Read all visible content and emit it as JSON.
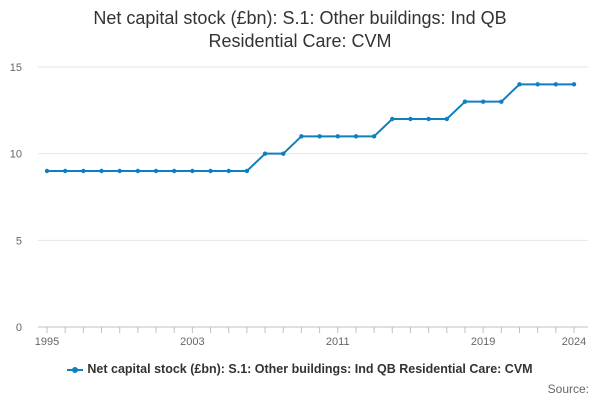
{
  "title_lines": [
    "Net capital stock (£bn): S.1: Other buildings: Ind QB",
    "Residential Care: CVM"
  ],
  "source": "Source:",
  "accent_color": "#0e7fc1",
  "chart_data": {
    "type": "line",
    "title": "Net capital stock (£bn): S.1: Other buildings: Ind QB Residential Care: CVM",
    "xlabel": "",
    "ylabel": "",
    "x": [
      1995,
      1996,
      1997,
      1998,
      1999,
      2000,
      2001,
      2002,
      2003,
      2004,
      2005,
      2006,
      2007,
      2008,
      2009,
      2010,
      2011,
      2012,
      2013,
      2014,
      2015,
      2016,
      2017,
      2018,
      2019,
      2020,
      2021,
      2022,
      2023,
      2024
    ],
    "series": [
      {
        "name": "Net capital stock (£bn): S.1: Other buildings: Ind QB Residential Care: CVM",
        "values": [
          9,
          9,
          9,
          9,
          9,
          9,
          9,
          9,
          9,
          9,
          9,
          9,
          10,
          10,
          11,
          11,
          11,
          11,
          11,
          12,
          12,
          12,
          12,
          13,
          13,
          13,
          14,
          14,
          14,
          14
        ]
      }
    ],
    "xlim": [
      1995,
      2024
    ],
    "ylim": [
      0,
      15
    ],
    "yticks": [
      0,
      5,
      10,
      15
    ],
    "xtick_labels": [
      "1995",
      "2003",
      "2011",
      "2019",
      "2024"
    ],
    "grid": "horizontal",
    "legend": "bottom"
  }
}
